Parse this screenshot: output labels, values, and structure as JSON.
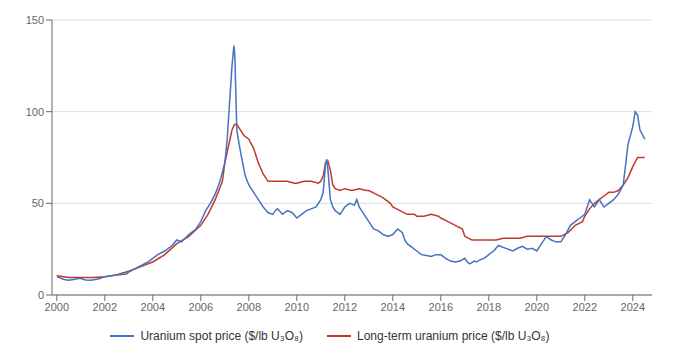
{
  "chart_data": {
    "type": "line",
    "xlim": [
      1999.8,
      2024.8
    ],
    "xticks": [
      2000,
      2002,
      2004,
      2006,
      2008,
      2010,
      2012,
      2014,
      2016,
      2018,
      2020,
      2022,
      2024
    ],
    "ylim": [
      0,
      150
    ],
    "yticks": [
      0,
      50,
      100,
      150
    ],
    "grid": "y",
    "legend": "bottom",
    "series": [
      {
        "name": "Uranium spot price ($/lb U₃O₈)",
        "color": "#4472c4",
        "x": [
          2000.0,
          2000.1,
          2000.3,
          2000.5,
          2000.7,
          2000.9,
          2001.0,
          2001.2,
          2001.4,
          2001.6,
          2001.8,
          2002.0,
          2002.3,
          2002.6,
          2002.9,
          2003.0,
          2003.2,
          2003.5,
          2003.8,
          2004.0,
          2004.2,
          2004.5,
          2004.8,
          2005.0,
          2005.2,
          2005.5,
          2005.8,
          2006.0,
          2006.2,
          2006.4,
          2006.6,
          2006.8,
          2007.0,
          2007.1,
          2007.2,
          2007.3,
          2007.38,
          2007.42,
          2007.5,
          2007.6,
          2007.7,
          2007.85,
          2008.0,
          2008.2,
          2008.4,
          2008.6,
          2008.8,
          2009.0,
          2009.1,
          2009.2,
          2009.4,
          2009.6,
          2009.8,
          2010.0,
          2010.2,
          2010.4,
          2010.6,
          2010.8,
          2011.0,
          2011.1,
          2011.2,
          2011.25,
          2011.3,
          2011.4,
          2011.5,
          2011.6,
          2011.8,
          2012.0,
          2012.2,
          2012.4,
          2012.5,
          2012.6,
          2012.8,
          2013.0,
          2013.2,
          2013.4,
          2013.6,
          2013.8,
          2014.0,
          2014.2,
          2014.4,
          2014.5,
          2014.6,
          2014.8,
          2015.0,
          2015.2,
          2015.4,
          2015.6,
          2015.8,
          2016.0,
          2016.2,
          2016.4,
          2016.6,
          2016.8,
          2017.0,
          2017.1,
          2017.2,
          2017.4,
          2017.5,
          2017.6,
          2017.8,
          2018.0,
          2018.2,
          2018.4,
          2018.6,
          2018.8,
          2019.0,
          2019.2,
          2019.4,
          2019.6,
          2019.8,
          2020.0,
          2020.2,
          2020.4,
          2020.6,
          2020.8,
          2021.0,
          2021.2,
          2021.4,
          2021.6,
          2021.8,
          2022.0,
          2022.1,
          2022.2,
          2022.3,
          2022.4,
          2022.5,
          2022.6,
          2022.8,
          2023.0,
          2023.2,
          2023.4,
          2023.6,
          2023.8,
          2024.0,
          2024.1,
          2024.2,
          2024.3,
          2024.5
        ],
        "values": [
          10.0,
          9.5,
          8.5,
          8.0,
          8.5,
          9.0,
          9.0,
          8.2,
          8.0,
          8.5,
          9.0,
          10.0,
          10.5,
          11.0,
          11.5,
          12.5,
          14.0,
          16.0,
          18.0,
          20.0,
          22.0,
          24.0,
          27.0,
          30.0,
          29.0,
          33.0,
          36.0,
          40.0,
          46.0,
          50.0,
          55.0,
          62.0,
          72.0,
          85.0,
          105.0,
          125.0,
          136.0,
          130.0,
          90.0,
          82.0,
          75.0,
          65.0,
          60.0,
          56.0,
          52.0,
          48.0,
          45.0,
          44.0,
          46.0,
          47.0,
          44.0,
          46.0,
          45.0,
          42.0,
          44.0,
          46.0,
          47.0,
          48.0,
          52.0,
          56.0,
          72.0,
          74.0,
          68.0,
          52.0,
          48.0,
          46.0,
          44.0,
          48.0,
          50.0,
          49.0,
          52.0,
          48.0,
          44.0,
          40.0,
          36.0,
          35.0,
          33.0,
          32.0,
          33.0,
          36.0,
          34.0,
          30.0,
          28.0,
          26.0,
          24.0,
          22.0,
          21.5,
          21.0,
          22.0,
          22.0,
          20.0,
          18.5,
          18.0,
          18.5,
          20.0,
          18.0,
          17.0,
          18.5,
          18.0,
          19.0,
          20.0,
          22.0,
          24.0,
          27.0,
          26.0,
          25.0,
          24.0,
          25.5,
          26.5,
          25.0,
          25.5,
          24.0,
          28.0,
          32.0,
          30.0,
          29.0,
          29.0,
          33.0,
          38.0,
          40.0,
          42.0,
          44.0,
          48.0,
          52.0,
          50.0,
          48.0,
          50.0,
          52.0,
          48.0,
          50.0,
          52.0,
          55.0,
          60.0,
          82.0,
          92.0,
          100.0,
          98.0,
          90.0,
          85.0
        ]
      },
      {
        "name": "Long-term uranium price ($/lb U₃O₈)",
        "color": "#c0392b",
        "x": [
          2000.0,
          2000.5,
          2001.0,
          2001.5,
          2002.0,
          2002.5,
          2003.0,
          2003.5,
          2004.0,
          2004.5,
          2005.0,
          2005.5,
          2006.0,
          2006.3,
          2006.6,
          2006.9,
          2007.0,
          2007.1,
          2007.2,
          2007.3,
          2007.4,
          2007.5,
          2007.6,
          2007.8,
          2008.0,
          2008.2,
          2008.4,
          2008.6,
          2008.8,
          2009.0,
          2009.3,
          2009.6,
          2009.9,
          2010.0,
          2010.3,
          2010.6,
          2010.9,
          2011.0,
          2011.1,
          2011.2,
          2011.3,
          2011.4,
          2011.5,
          2011.6,
          2011.8,
          2012.0,
          2012.3,
          2012.6,
          2012.9,
          2013.0,
          2013.3,
          2013.6,
          2013.9,
          2014.0,
          2014.3,
          2014.6,
          2014.9,
          2015.0,
          2015.3,
          2015.6,
          2015.9,
          2016.0,
          2016.3,
          2016.6,
          2016.9,
          2017.0,
          2017.3,
          2017.6,
          2017.9,
          2018.0,
          2018.3,
          2018.6,
          2018.9,
          2019.0,
          2019.3,
          2019.6,
          2019.9,
          2020.0,
          2020.3,
          2020.6,
          2020.9,
          2021.0,
          2021.3,
          2021.6,
          2021.9,
          2022.0,
          2022.2,
          2022.4,
          2022.6,
          2022.8,
          2023.0,
          2023.2,
          2023.4,
          2023.6,
          2023.8,
          2024.0,
          2024.2,
          2024.5
        ],
        "values": [
          10.5,
          9.5,
          9.5,
          9.5,
          10.0,
          11.0,
          13.0,
          15.5,
          18.0,
          22.0,
          28.0,
          32.0,
          38.0,
          44.0,
          52.0,
          62.0,
          72.0,
          78.0,
          84.0,
          90.0,
          93.0,
          93.0,
          91.0,
          87.0,
          85.0,
          80.0,
          72.0,
          66.0,
          62.0,
          62.0,
          62.0,
          62.0,
          61.0,
          61.0,
          62.0,
          62.0,
          61.0,
          62.0,
          65.0,
          72.0,
          73.0,
          68.0,
          60.0,
          58.0,
          57.0,
          58.0,
          57.0,
          58.0,
          57.0,
          57.0,
          55.0,
          53.0,
          50.0,
          48.0,
          46.0,
          44.0,
          44.0,
          43.0,
          43.0,
          44.0,
          43.0,
          42.0,
          40.0,
          38.0,
          36.0,
          32.0,
          30.0,
          30.0,
          30.0,
          30.0,
          30.0,
          31.0,
          31.0,
          31.0,
          31.0,
          32.0,
          32.0,
          32.0,
          32.0,
          32.0,
          32.0,
          32.0,
          34.0,
          38.0,
          40.0,
          43.0,
          47.0,
          50.0,
          52.0,
          54.0,
          56.0,
          56.0,
          57.0,
          60.0,
          64.0,
          70.0,
          75.0,
          75.0
        ]
      }
    ]
  }
}
